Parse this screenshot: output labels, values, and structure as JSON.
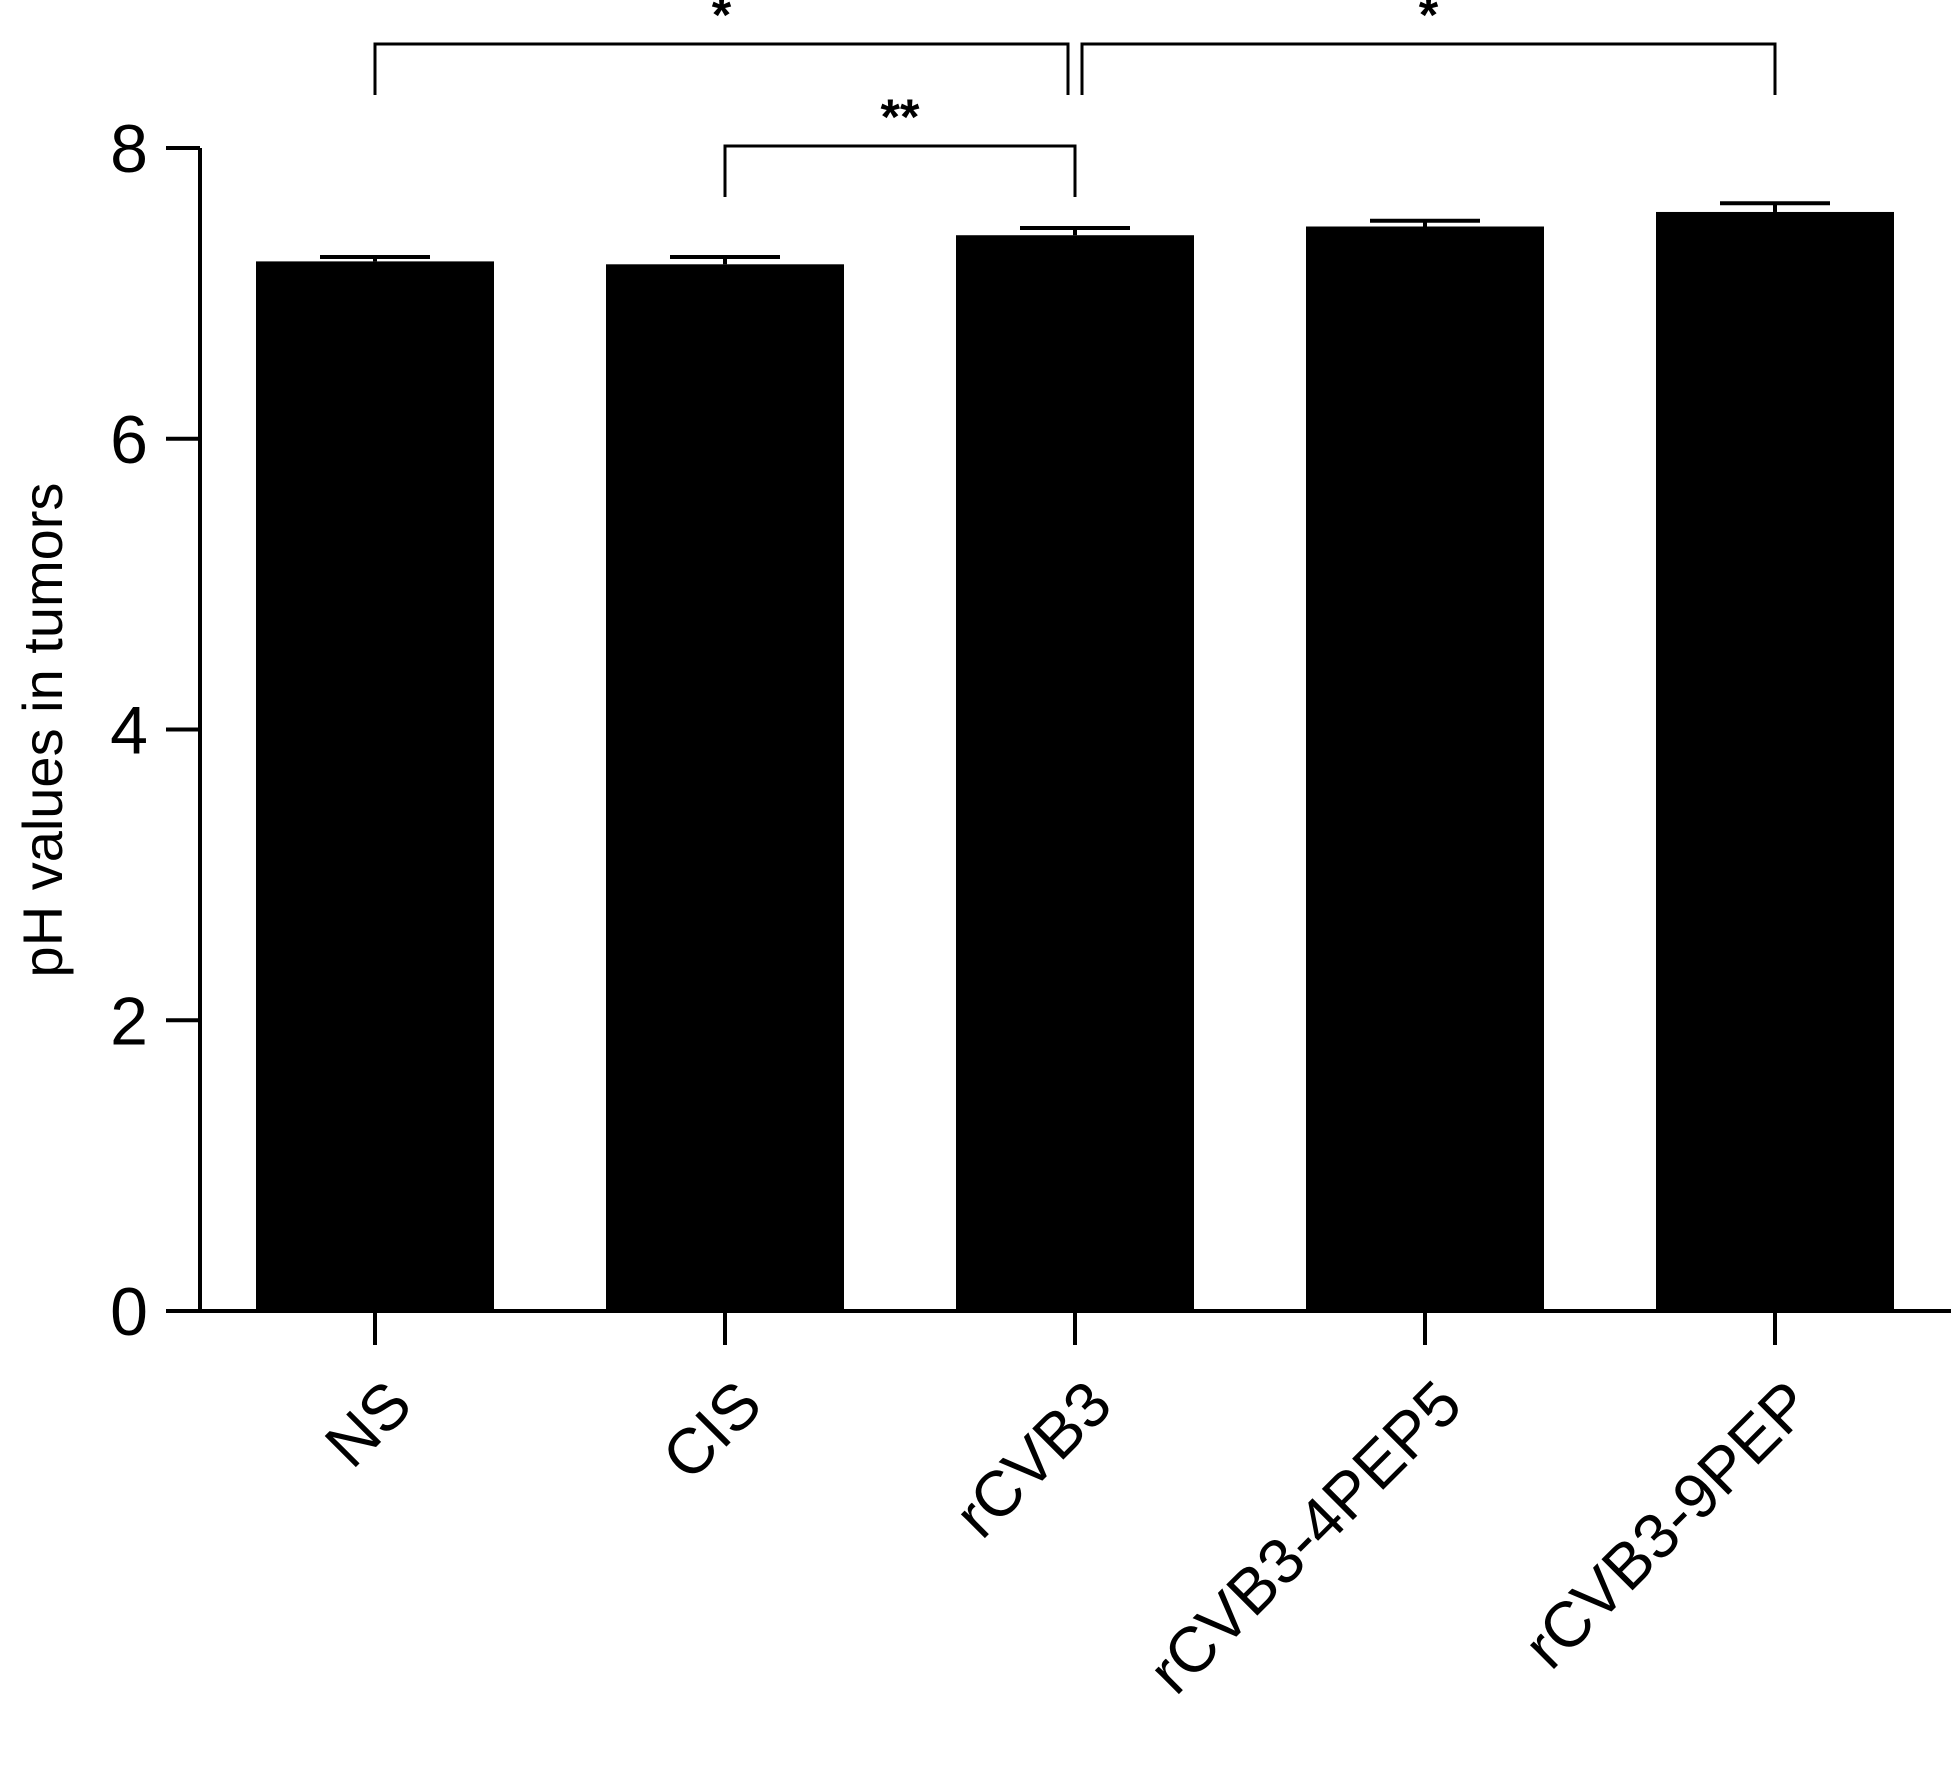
{
  "chart_data": {
    "type": "bar",
    "title": "",
    "xlabel": "",
    "ylabel": "pH values in tumors",
    "ylim": [
      0,
      8
    ],
    "yticks": [
      "0",
      "2",
      "4",
      "6",
      "8"
    ],
    "categories": [
      "NS",
      "CIS",
      "rCVB3",
      "rCVB3-4PEP5",
      "rCVB3-9PEP"
    ],
    "values": [
      7.22,
      7.2,
      7.4,
      7.46,
      7.56
    ],
    "error": [
      0.03,
      0.05,
      0.05,
      0.04,
      0.06
    ],
    "grid": false,
    "legend": "none",
    "bar_color": "#000000",
    "significance": [
      {
        "from": "NS",
        "to": "rCVB3",
        "label": "*"
      },
      {
        "from": "CIS",
        "to": "rCVB3",
        "label": "**"
      },
      {
        "from": "rCVB3",
        "to": "rCVB3-9PEP",
        "label": "*"
      }
    ]
  }
}
